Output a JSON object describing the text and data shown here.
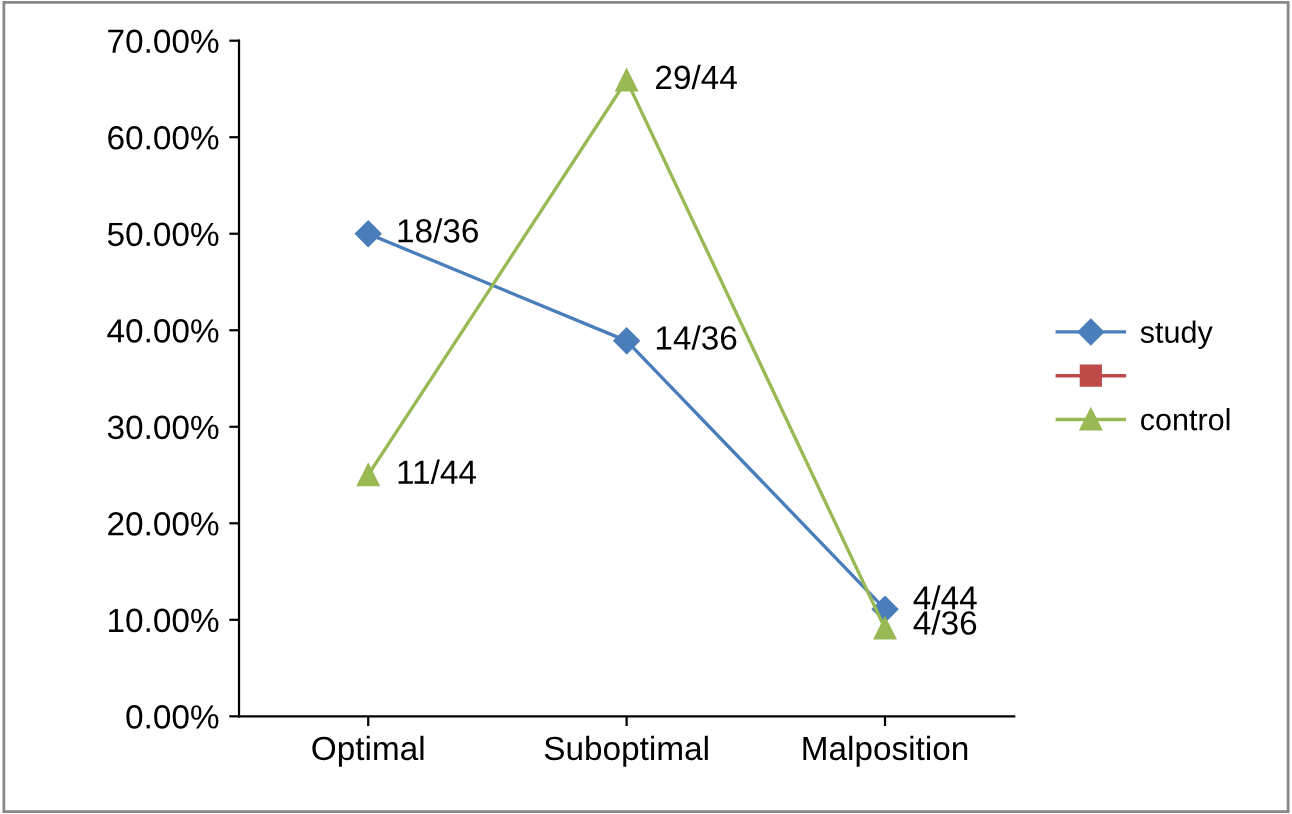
{
  "chart_data": {
    "type": "line",
    "categories": [
      "Optimal",
      "Suboptimal",
      "Malposition"
    ],
    "series": [
      {
        "name": "study",
        "color": "#4a7ebb",
        "marker": "diamond",
        "values": [
          50,
          38.9,
          11.1
        ],
        "value_labels": [
          "18/36",
          "14/36",
          "4/36"
        ]
      },
      {
        "color": "#be4b48",
        "marker": "square",
        "values": [
          null,
          null,
          null
        ]
      },
      {
        "name": "control",
        "color": "#98b954",
        "marker": "triangle",
        "values": [
          25,
          65.9,
          9.1
        ],
        "value_labels": [
          "11/44",
          "29/44",
          "4/44"
        ]
      }
    ],
    "ylim": [
      0,
      70
    ],
    "yticks": [
      {
        "value": 0,
        "label": "0.00%"
      },
      {
        "value": 10,
        "label": "10.00%"
      },
      {
        "value": 20,
        "label": "20.00%"
      },
      {
        "value": 30,
        "label": "30.00%"
      },
      {
        "value": 40,
        "label": "40.00%"
      },
      {
        "value": 50,
        "label": "50.00%"
      },
      {
        "value": 60,
        "label": "60.00%"
      },
      {
        "value": 70,
        "label": "70.00%"
      }
    ],
    "grid": false,
    "legend": "right",
    "line_style": "solid"
  }
}
